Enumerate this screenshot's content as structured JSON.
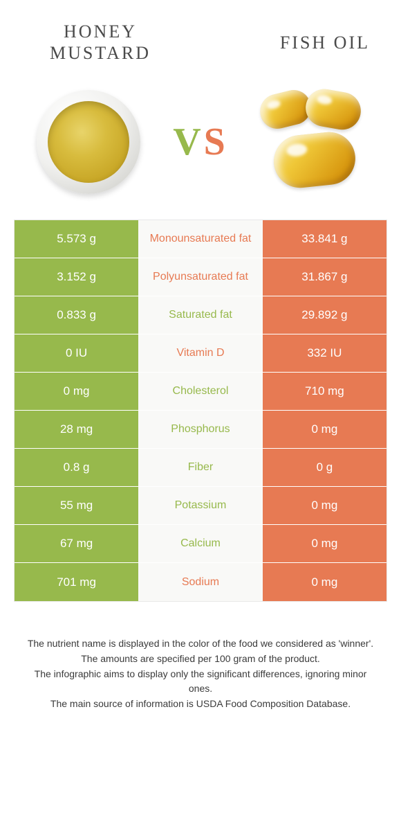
{
  "colors": {
    "green": "#97b94c",
    "orange": "#e77a53",
    "vs_v": "#97b94c",
    "vs_s": "#e77a53",
    "mid_bg": "#f9f9f7",
    "text_dark": "#4a4a4a"
  },
  "titles": {
    "left_line1": "HONEY",
    "left_line2": "MUSTARD",
    "right": "FISH OIL",
    "vs_v": "V",
    "vs_s": "S"
  },
  "rows": [
    {
      "left": "5.573 g",
      "label": "Monounsaturated fat",
      "right": "33.841 g",
      "winner": "right"
    },
    {
      "left": "3.152 g",
      "label": "Polyunsaturated fat",
      "right": "31.867 g",
      "winner": "right"
    },
    {
      "left": "0.833 g",
      "label": "Saturated fat",
      "right": "29.892 g",
      "winner": "left"
    },
    {
      "left": "0 IU",
      "label": "Vitamin D",
      "right": "332 IU",
      "winner": "right"
    },
    {
      "left": "0 mg",
      "label": "Cholesterol",
      "right": "710 mg",
      "winner": "left"
    },
    {
      "left": "28 mg",
      "label": "Phosphorus",
      "right": "0 mg",
      "winner": "left"
    },
    {
      "left": "0.8 g",
      "label": "Fiber",
      "right": "0 g",
      "winner": "left"
    },
    {
      "left": "55 mg",
      "label": "Potassium",
      "right": "0 mg",
      "winner": "left"
    },
    {
      "left": "67 mg",
      "label": "Calcium",
      "right": "0 mg",
      "winner": "left"
    },
    {
      "left": "701 mg",
      "label": "Sodium",
      "right": "0 mg",
      "winner": "right"
    }
  ],
  "footnotes": [
    "The nutrient name is displayed in the color of the food we considered as 'winner'.",
    "The amounts are specified per 100 gram of the product.",
    "The infographic aims to display only the significant differences, ignoring minor ones.",
    "The main source of information is USDA Food Composition Database."
  ]
}
